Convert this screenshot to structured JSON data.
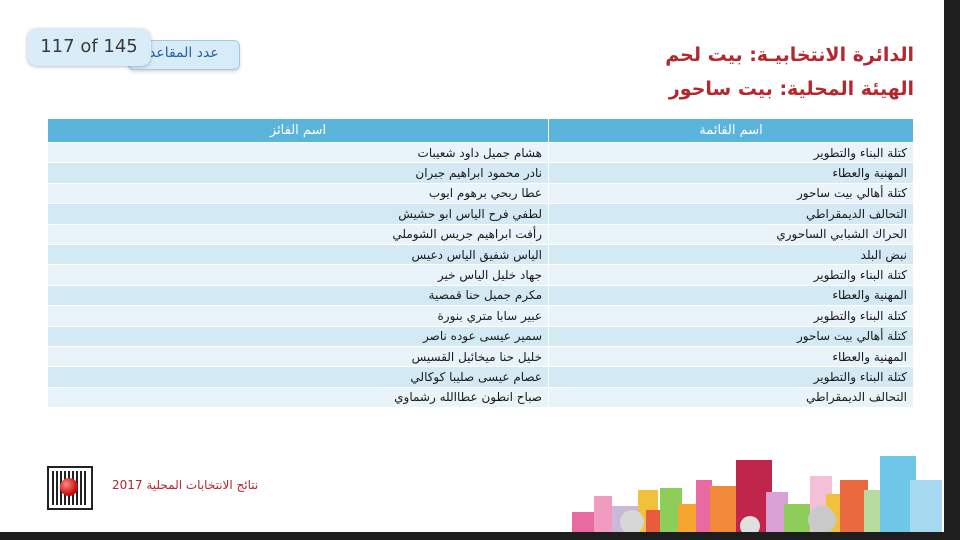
{
  "page_counter": "117 of 145",
  "counter_tab_text": "عدد المقاعد",
  "district_title": "الدائرة الانتخابيـة: بيت لحم",
  "body_title": "الهيئة المحلية: بيت ساحور",
  "table": {
    "headers": {
      "list": "اسم القائمة",
      "winner": "اسم الفائز"
    },
    "rows": [
      {
        "list": "كتلة البناء والتطوير",
        "winner": "هشام جميل داود شعيبات"
      },
      {
        "list": "المهنية والعطاء",
        "winner": "نادر محمود ابراهيم جبران"
      },
      {
        "list": "كتلة أهالي بيت ساحور",
        "winner": "عطا ربحي برهوم ايوب"
      },
      {
        "list": "التحالف الديمقراطي",
        "winner": "لطفي فرح الياس ابو حشيش"
      },
      {
        "list": "الحراك الشبابي الساحوري",
        "winner": "رأفت ابراهيم جريس الشوملي"
      },
      {
        "list": "نبض البلد",
        "winner": "الياس شفيق الياس دعيس"
      },
      {
        "list": "كتلة البناء والتطوير",
        "winner": "جهاد خليل الياس خير"
      },
      {
        "list": "المهنية والعطاء",
        "winner": "مكرم جميل حنا قمصية"
      },
      {
        "list": "كتلة البناء والتطوير",
        "winner": "عبير سابا متري بنورة"
      },
      {
        "list": "كتلة أهالي بيت ساحور",
        "winner": "سمير عيسى عوده ناصر"
      },
      {
        "list": "المهنية والعطاء",
        "winner": "خليل حنا ميخائيل القسيس"
      },
      {
        "list": "كتلة البناء والتطوير",
        "winner": "عصام عيسى صليبا كوكالي"
      },
      {
        "list": "التحالف الديمقراطي",
        "winner": "صباح انطون عطاالله رشماوي"
      }
    ]
  },
  "footer_text": "نتائج الانتخابات المحلية 2017",
  "colors": {
    "title_red": "#b3272d",
    "header_blue": "#5ab4db",
    "row_light": "#e9f4fa",
    "row_dark": "#d3e9f4"
  },
  "icons": {
    "logo": "election-commission-logo-icon",
    "skyline": "city-skyline-illustration"
  }
}
